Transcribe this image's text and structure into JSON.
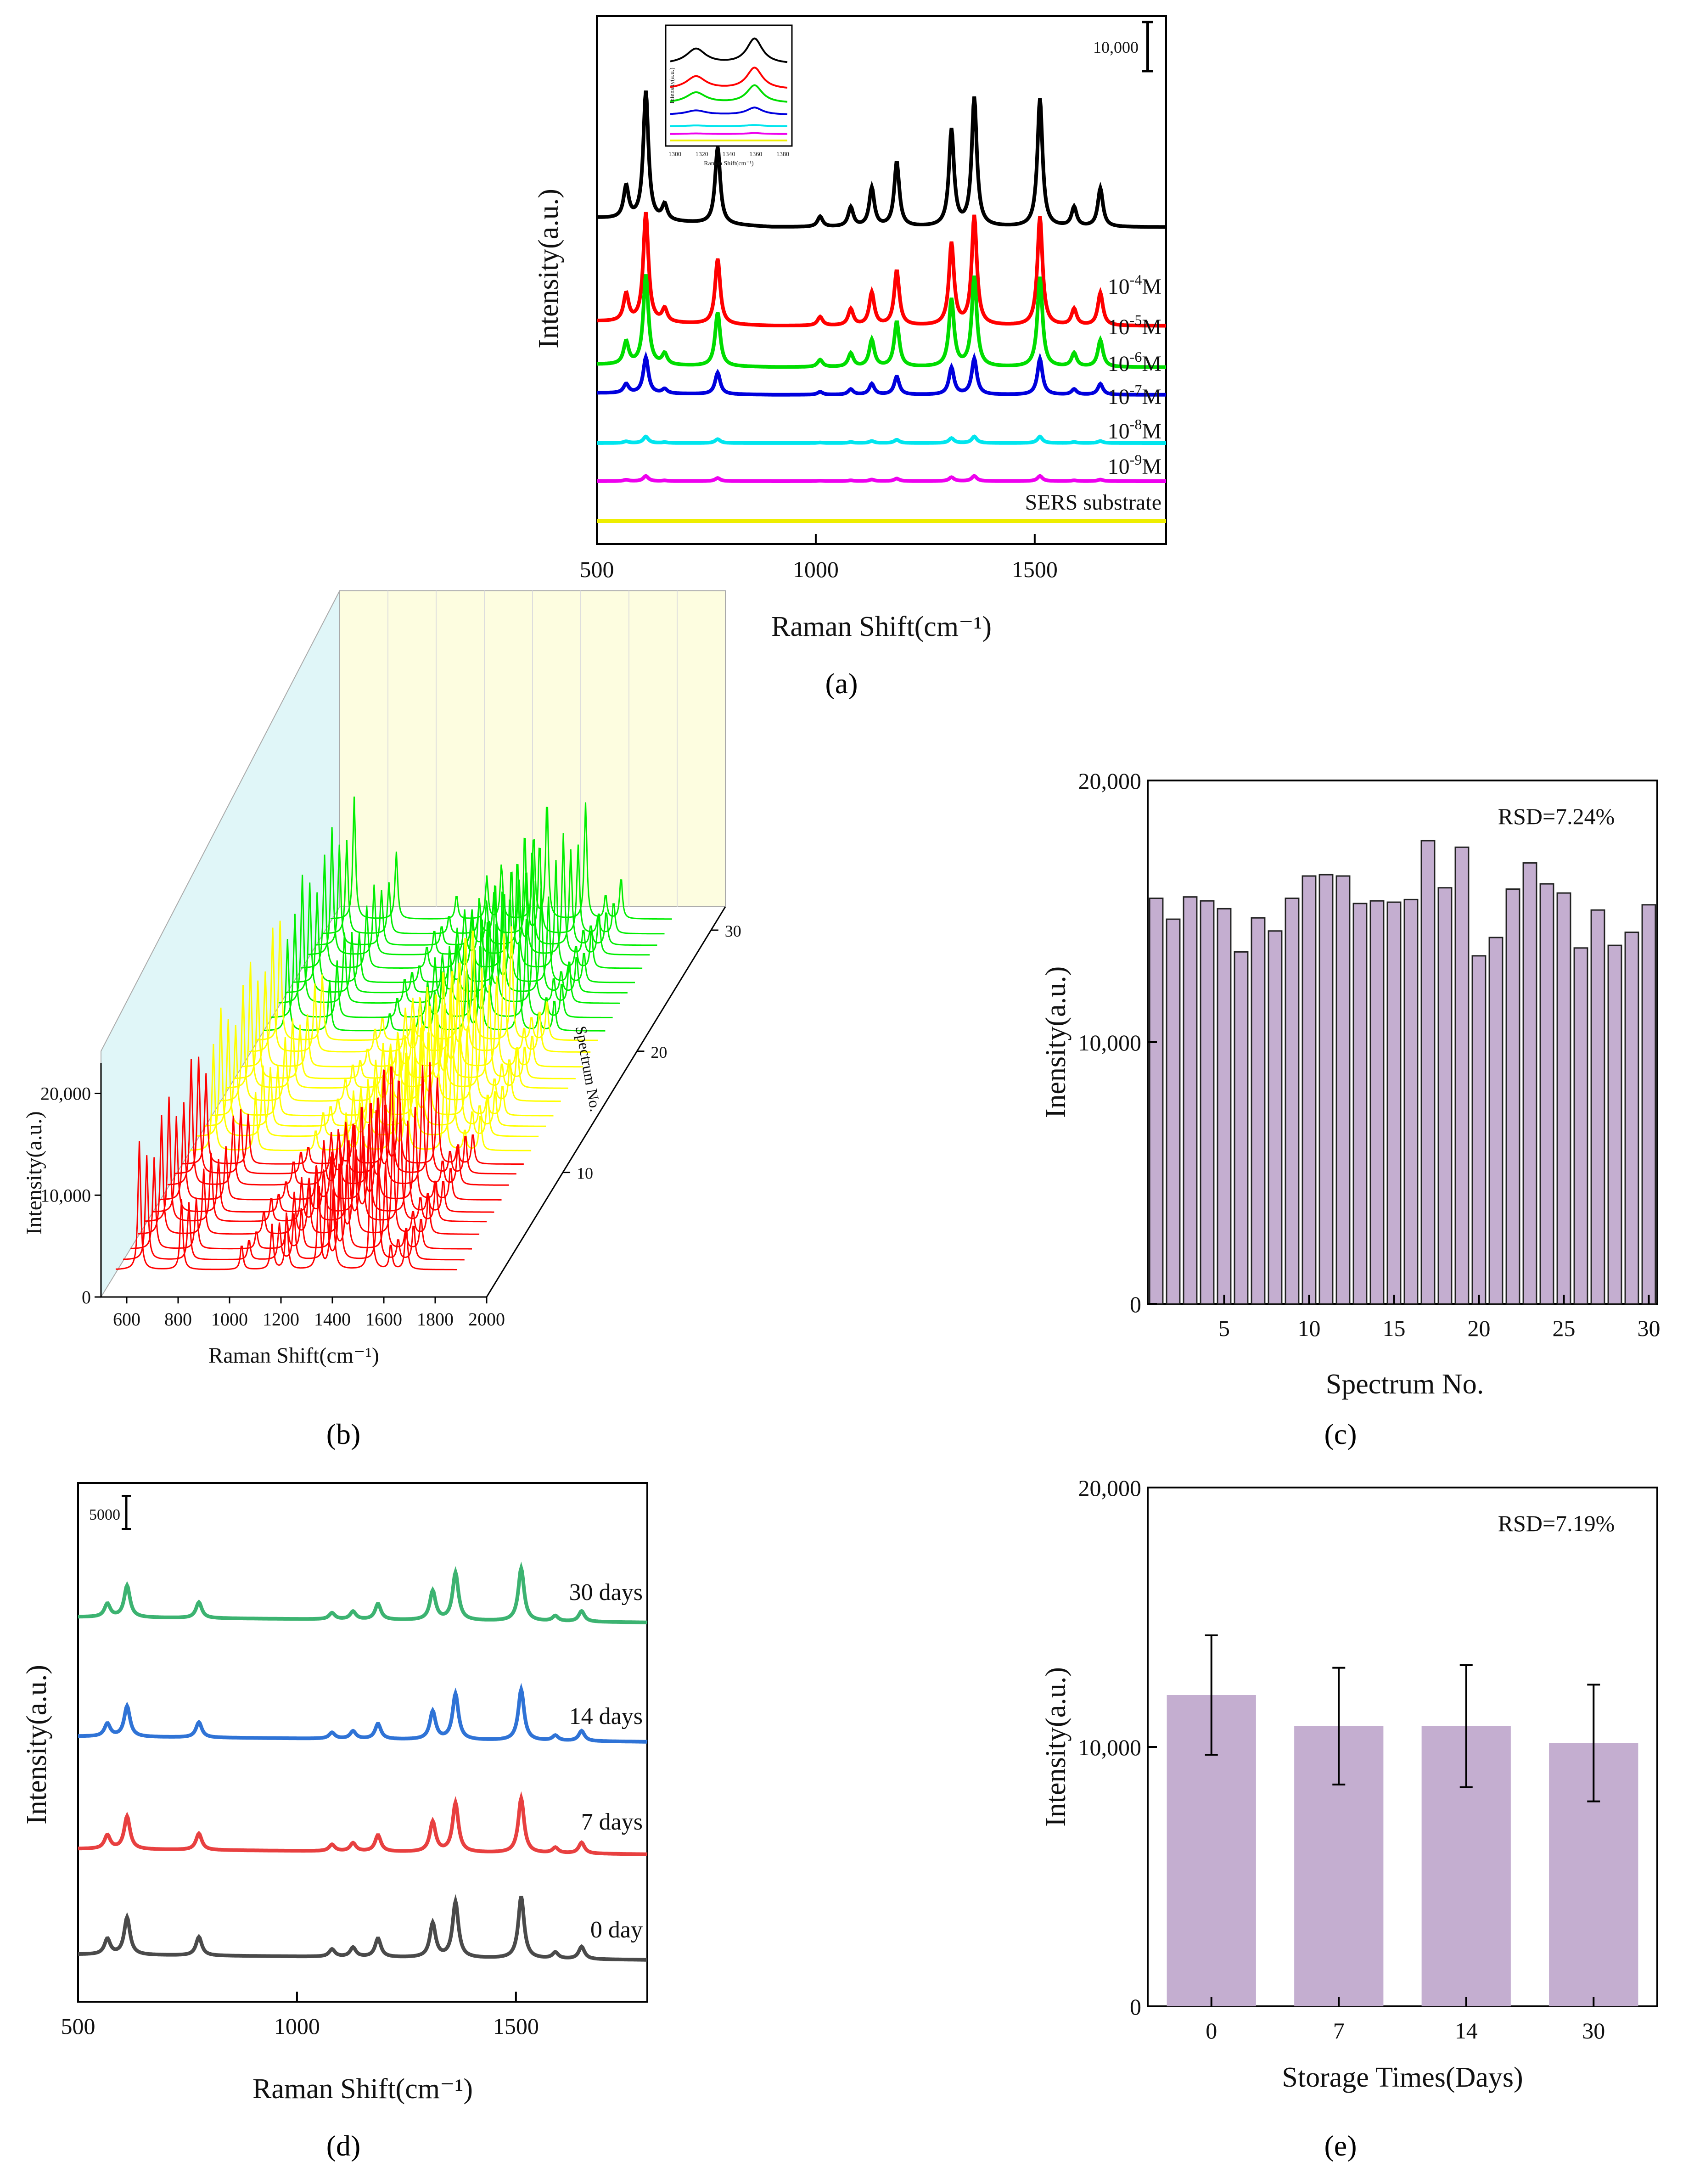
{
  "panels": [
    {
      "id": "a",
      "label": "(a)"
    },
    {
      "id": "b",
      "label": "(b)"
    },
    {
      "id": "c",
      "label": "(c)"
    },
    {
      "id": "d",
      "label": "(d)"
    },
    {
      "id": "e",
      "label": "(e)"
    }
  ],
  "chart_data": [
    {
      "id": "a",
      "type": "line",
      "xlabel": "Raman Shift(cm⁻¹)",
      "ylabel": "Intensity(a.u.)",
      "xlim": [
        500,
        1800
      ],
      "xticks": [
        500,
        1000,
        1500
      ],
      "scale_bar_label": "10,000",
      "peaks": [
        [
          567,
          0.25
        ],
        [
          612,
          1.0
        ],
        [
          655,
          0.12
        ],
        [
          776,
          0.6
        ],
        [
          1010,
          0.08
        ],
        [
          1080,
          0.15
        ],
        [
          1128,
          0.3
        ],
        [
          1185,
          0.5
        ],
        [
          1310,
          0.75
        ],
        [
          1362,
          1.0
        ],
        [
          1512,
          1.0
        ],
        [
          1590,
          0.15
        ],
        [
          1650,
          0.3
        ]
      ],
      "series": [
        {
          "name": "10⁻⁴M",
          "prefix": "10",
          "exp": "-4",
          "suffix": "M",
          "color": "#000000",
          "amplitude": 1.0,
          "baseline_drift": 1
        },
        {
          "name": "10⁻⁵M",
          "prefix": "10",
          "exp": "-5",
          "suffix": "M",
          "color": "#ff0000",
          "amplitude": 0.85,
          "baseline_drift": 0.5
        },
        {
          "name": "10⁻⁶M",
          "prefix": "10",
          "exp": "-6",
          "suffix": "M",
          "color": "#00dd00",
          "amplitude": 0.7,
          "baseline_drift": 0.3
        },
        {
          "name": "10⁻⁷M",
          "prefix": "10",
          "exp": "-7",
          "suffix": "M",
          "color": "#0000dd",
          "amplitude": 0.28,
          "baseline_drift": 0.2
        },
        {
          "name": "10⁻⁸M",
          "prefix": "10",
          "exp": "-8",
          "suffix": "M",
          "color": "#00e5ee",
          "amplitude": 0.05,
          "baseline_drift": 0
        },
        {
          "name": "10⁻⁹M",
          "prefix": "10",
          "exp": "-9",
          "suffix": "M",
          "color": "#ee00ee",
          "amplitude": 0.04,
          "baseline_drift": 0
        },
        {
          "name": "SERS substrate",
          "prefix": "SERS substrate",
          "exp": "",
          "suffix": "",
          "color": "#eeee00",
          "amplitude": 0,
          "baseline_drift": 0
        }
      ],
      "inset": {
        "xlabel": "Raman Shift(cm⁻¹)",
        "ylabel": "Intensity(a.u.)",
        "xticks": [
          1300,
          1320,
          1340,
          1360,
          1380
        ]
      }
    },
    {
      "id": "b",
      "type": "line",
      "subtype": "3d-waterfall",
      "xlabel": "Raman Shift(cm⁻¹)",
      "ylabel": "Intensity(a.u.)",
      "zlabel": "Spectrum No.",
      "xlim": [
        500,
        2000
      ],
      "xticks": [
        600,
        800,
        1000,
        1200,
        1400,
        1600,
        1800,
        2000
      ],
      "yticks": [
        0,
        10000,
        20000
      ],
      "ytick_labels": [
        "0",
        "10,000",
        "20,000"
      ],
      "zticks": [
        10,
        20,
        30
      ],
      "n_spectra": 30,
      "group_colors": [
        {
          "from": 1,
          "to": 10,
          "color": "#ff0000"
        },
        {
          "from": 11,
          "to": 20,
          "color": "#ffff00"
        },
        {
          "from": 21,
          "to": 30,
          "color": "#00ee00"
        }
      ]
    },
    {
      "id": "c",
      "type": "bar",
      "xlabel": "Spectrum No.",
      "ylabel": "Inensity(a.u.)",
      "annotation": "RSD=7.24%",
      "xlim": [
        0.5,
        30.5
      ],
      "ylim": [
        0,
        20000
      ],
      "xticks": [
        5,
        10,
        15,
        20,
        25,
        30
      ],
      "yticks": [
        0,
        10000,
        20000
      ],
      "ytick_labels": [
        "0",
        "10,000",
        "20,000"
      ],
      "bar_color": "#c4aed0",
      "values": [
        15500,
        14700,
        15550,
        15400,
        15100,
        13450,
        14750,
        14250,
        15500,
        16350,
        16400,
        16350,
        15300,
        15400,
        15350,
        15450,
        17700,
        15900,
        17450,
        13300,
        14000,
        15850,
        16850,
        16050,
        15700,
        13600,
        15050,
        13700,
        14200,
        15250
      ]
    },
    {
      "id": "d",
      "type": "line",
      "xlabel": "Raman Shift(cm⁻¹)",
      "ylabel": "Intensity(a.u.)",
      "xlim": [
        500,
        1800
      ],
      "xticks": [
        500,
        1000,
        1500
      ],
      "scale_bar_label": "5000",
      "peaks": [
        [
          567,
          0.25
        ],
        [
          612,
          0.6
        ],
        [
          776,
          0.3
        ],
        [
          1080,
          0.12
        ],
        [
          1128,
          0.15
        ],
        [
          1185,
          0.3
        ],
        [
          1310,
          0.55
        ],
        [
          1362,
          0.9
        ],
        [
          1512,
          1.0
        ],
        [
          1590,
          0.1
        ],
        [
          1650,
          0.2
        ]
      ],
      "series": [
        {
          "name": "30 days",
          "color": "#3cb371",
          "amplitude": 0.85
        },
        {
          "name": "14 days",
          "color": "#2f73d6",
          "amplitude": 0.82
        },
        {
          "name": "7 days",
          "color": "#e84040",
          "amplitude": 0.88
        },
        {
          "name": "0 day",
          "color": "#4a4a4a",
          "amplitude": 1.0
        }
      ]
    },
    {
      "id": "e",
      "type": "bar",
      "xlabel": "Storage Times(Days)",
      "ylabel": "Intensity(a.u.)",
      "annotation": "RSD=7.19%",
      "ylim": [
        0,
        20000
      ],
      "yticks": [
        0,
        10000,
        20000
      ],
      "ytick_labels": [
        "0",
        "10,000",
        "20,000"
      ],
      "categories": [
        "0",
        "7",
        "14",
        "30"
      ],
      "values": [
        12000,
        10800,
        10800,
        10150
      ],
      "errors": [
        2300,
        2250,
        2350,
        2250
      ],
      "bar_color": "#c4aed0"
    }
  ]
}
